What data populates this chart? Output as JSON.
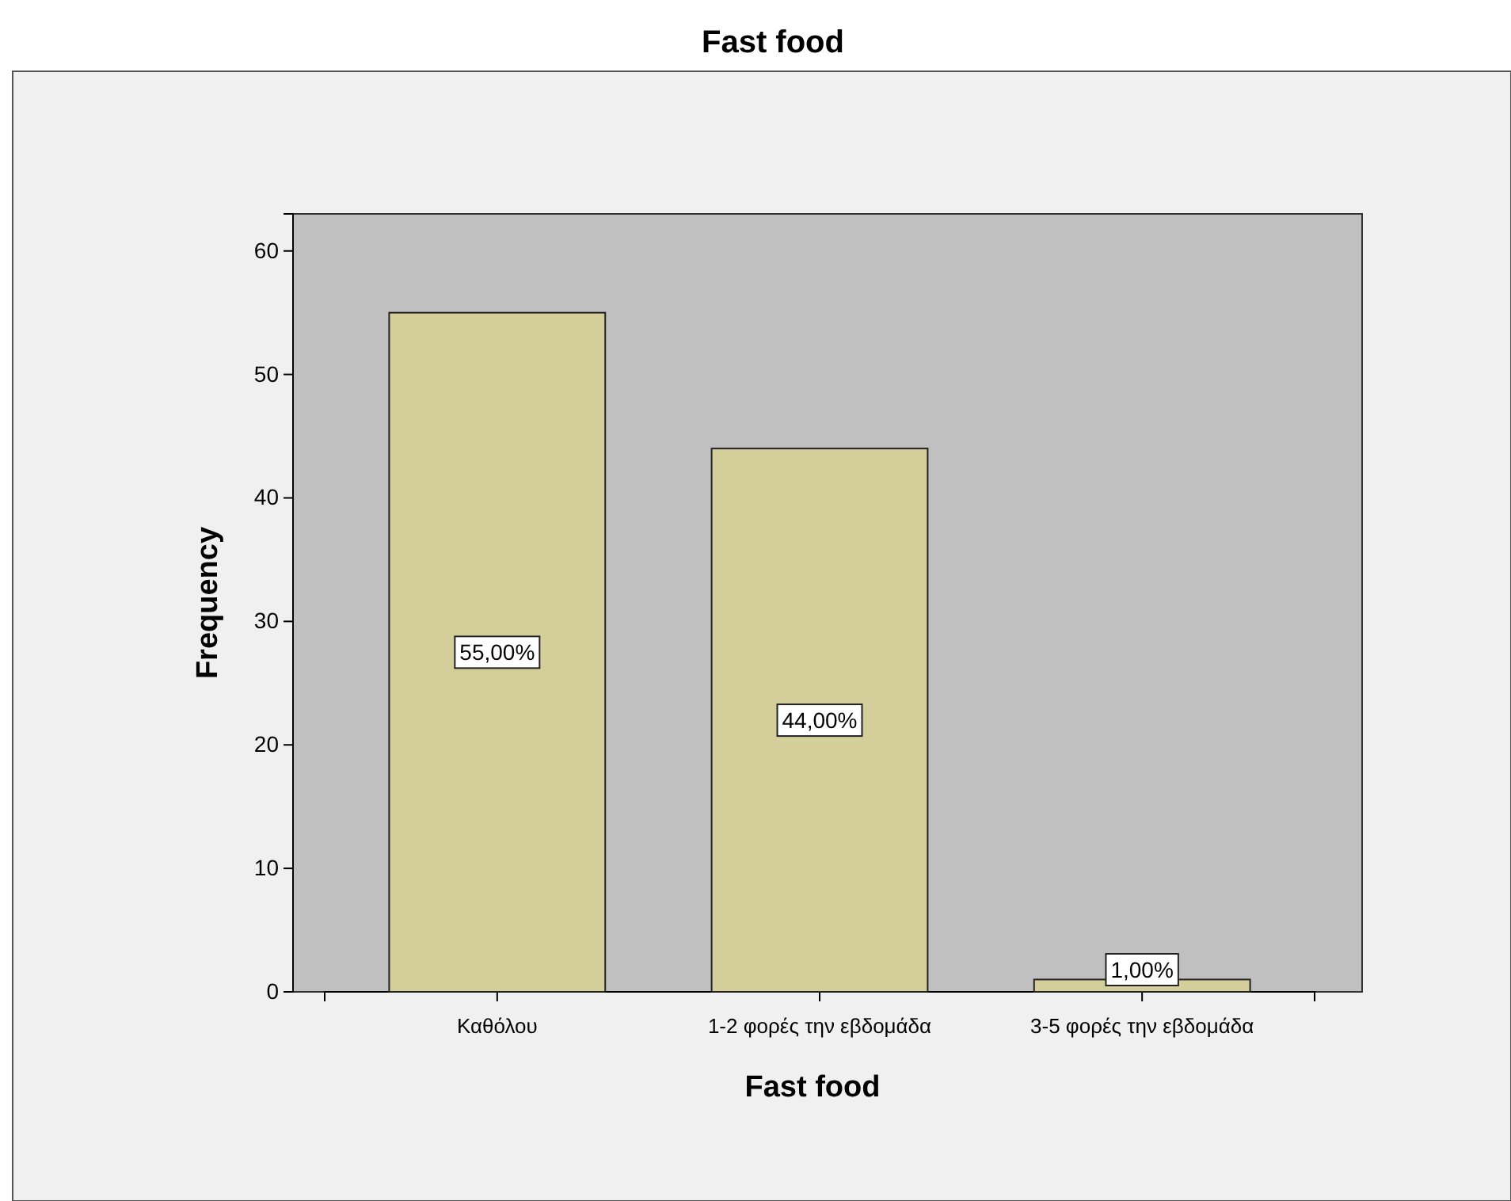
{
  "chart_data": {
    "type": "bar",
    "title": "Fast food",
    "xlabel": "Fast food",
    "ylabel": "Frequency",
    "categories": [
      "Καθόλου",
      "1-2 φορές την εβδομάδα",
      "3-5 φορές την εβδομάδα"
    ],
    "values": [
      55,
      44,
      1
    ],
    "value_labels": [
      "55,00%",
      "44,00%",
      "1,00%"
    ],
    "color": "#d4cf9a",
    "ylim": [
      0,
      63
    ],
    "yticks": [
      0,
      10,
      20,
      30,
      40,
      50,
      60
    ],
    "grid": false
  }
}
